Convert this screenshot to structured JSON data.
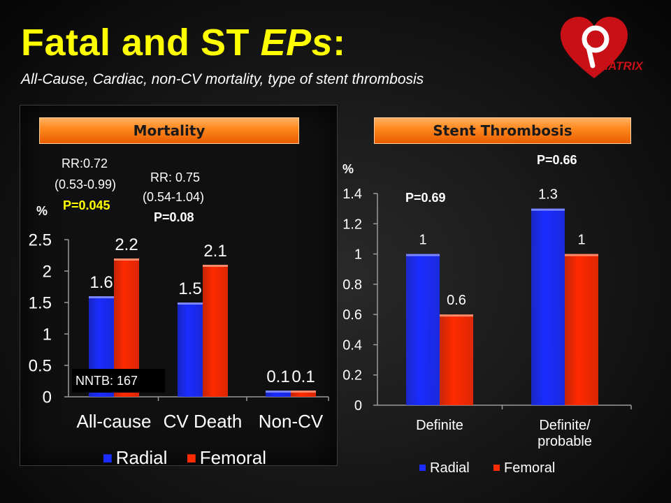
{
  "slide": {
    "title_part1": "Fatal and ST ",
    "title_part2": "EPs",
    "title_part3": ":",
    "subtitle": "All-Cause, Cardiac, non-CV mortality, type of stent thrombosis",
    "logo_text": "MATRIX"
  },
  "colors": {
    "title": "#ffff00",
    "radial": "#1a2cff",
    "femoral": "#ff2a00",
    "banner": "#ff8a20",
    "pvalue_highlight": "#ffff00"
  },
  "mortality": {
    "banner": "Mortality",
    "unit": "%",
    "rr1": {
      "line1": "RR:0.72",
      "line2": "(0.53-0.99)",
      "pvalue": "P=0.045"
    },
    "rr2": {
      "line1": "RR: 0.75",
      "line2": "(0.54-1.04)",
      "pvalue": "P=0.08"
    },
    "nntb": "NNTB: 167"
  },
  "stent": {
    "banner": "Stent Thrombosis",
    "unit": "%",
    "p_definite": "P=0.69",
    "p_probable": "P=0.66"
  },
  "chart_data": [
    {
      "type": "bar",
      "title": "Mortality",
      "ylabel": "%",
      "categories": [
        "All-cause",
        "CV Death",
        "Non-CV"
      ],
      "series": [
        {
          "name": "Radial",
          "values": [
            1.6,
            1.5,
            0.1
          ],
          "labels": [
            "1.6",
            "1.5",
            "0.1"
          ]
        },
        {
          "name": "Femoral",
          "values": [
            2.2,
            2.1,
            0.1
          ],
          "labels": [
            "2.2",
            "2.1",
            "0.1"
          ]
        }
      ],
      "ylim": [
        0,
        2.5
      ],
      "yticks": [
        0,
        0.5,
        1,
        1.5,
        2,
        2.5
      ],
      "ytick_labels": [
        "0",
        "0.5",
        "1",
        "1.5",
        "2",
        "2.5"
      ],
      "legend": "bottom",
      "grid": false
    },
    {
      "type": "bar",
      "title": "Stent Thrombosis",
      "ylabel": "%",
      "categories": [
        "Definite",
        "Definite/ probable"
      ],
      "series": [
        {
          "name": "Radial",
          "values": [
            1,
            1.3
          ],
          "labels": [
            "1",
            "1.3"
          ]
        },
        {
          "name": "Femoral",
          "values": [
            0.6,
            1
          ],
          "labels": [
            "0.6",
            "1"
          ]
        }
      ],
      "ylim": [
        0,
        1.4
      ],
      "yticks": [
        0,
        0.2,
        0.4,
        0.6,
        0.8,
        1,
        1.2,
        1.4
      ],
      "ytick_labels": [
        "0",
        "0.2",
        "0.4",
        "0.6",
        "0.8",
        "1",
        "1.2",
        "1.4"
      ],
      "legend": "bottom",
      "grid": false
    }
  ]
}
